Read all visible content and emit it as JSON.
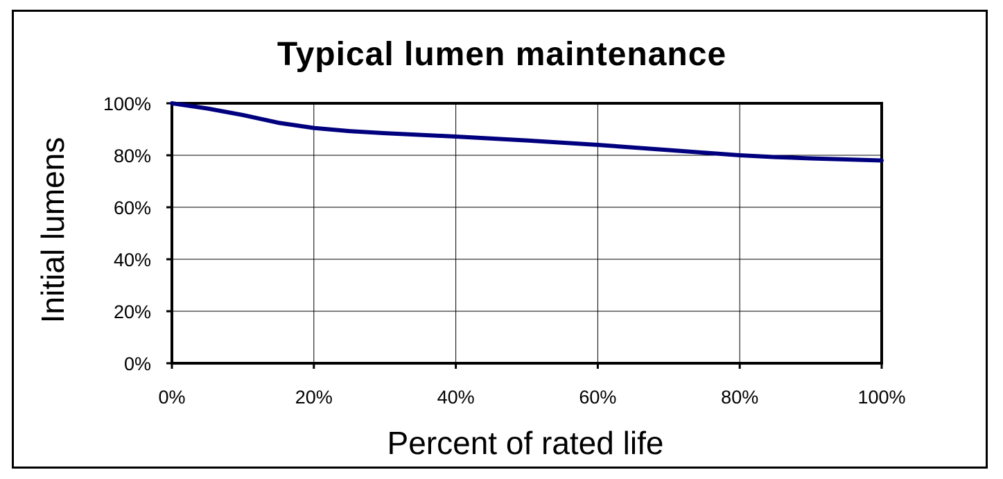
{
  "chart_data": {
    "type": "line",
    "title": "Typical lumen maintenance",
    "xlabel": "Percent of rated life",
    "ylabel": "Initial lumens",
    "xlim": [
      0,
      100
    ],
    "ylim": [
      0,
      100
    ],
    "x_ticks": [
      "0%",
      "20%",
      "40%",
      "60%",
      "80%",
      "100%"
    ],
    "y_ticks": [
      "0%",
      "20%",
      "40%",
      "60%",
      "80%",
      "100%"
    ],
    "grid": true,
    "series": [
      {
        "color": "#00007f",
        "x": [
          0,
          5,
          10,
          15,
          20,
          25,
          30,
          40,
          50,
          60,
          70,
          80,
          85,
          90,
          95,
          100
        ],
        "y": [
          100,
          98,
          95.5,
          92.5,
          90.5,
          89.3,
          88.5,
          87.2,
          85.7,
          84,
          82,
          80,
          79.3,
          78.8,
          78.4,
          78
        ]
      }
    ]
  }
}
